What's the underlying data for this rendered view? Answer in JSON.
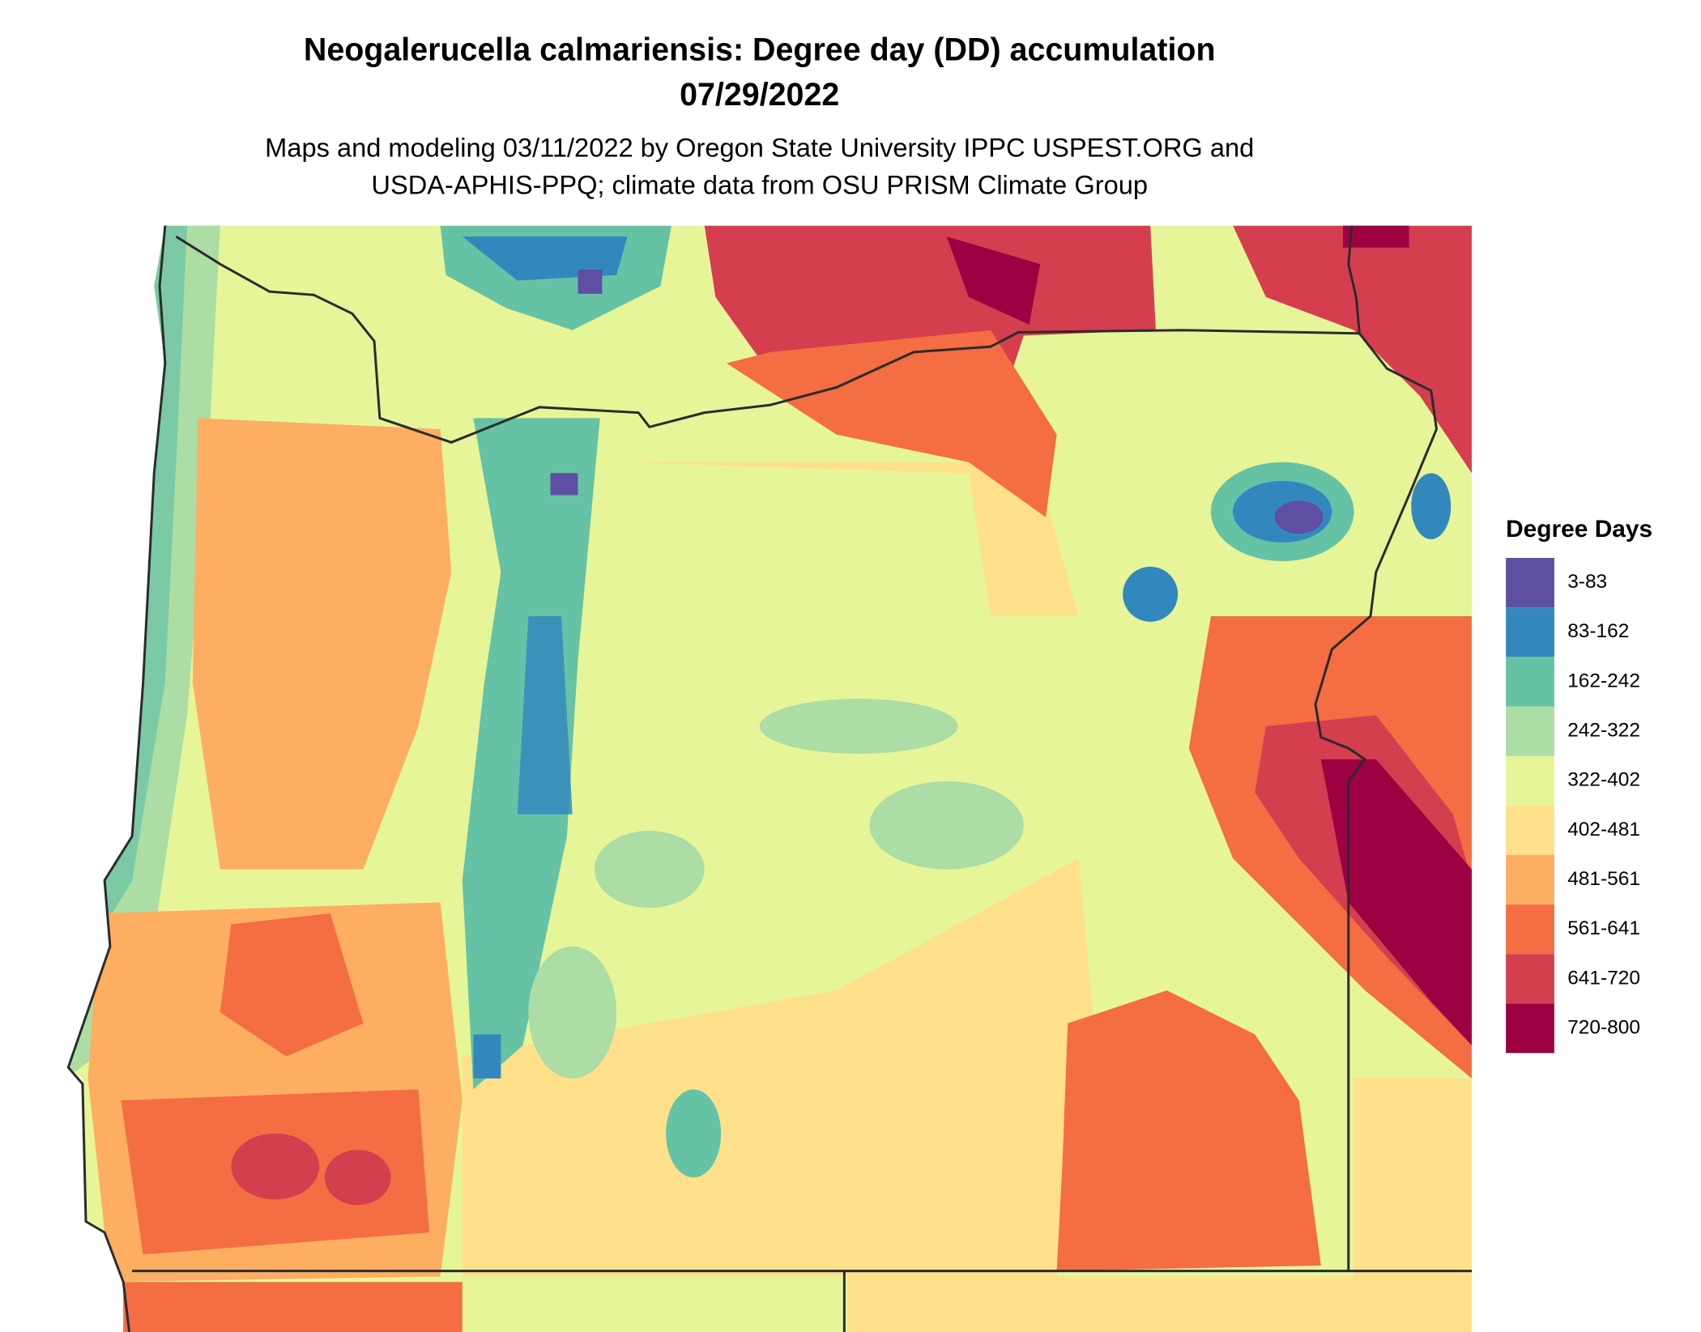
{
  "header": {
    "title": "Neogalerucella calmariensis: Degree day (DD) accumulation",
    "date": "07/29/2022",
    "subtitle_lines": [
      "Maps and modeling 03/11/2022 by Oregon State University IPPC USPEST.ORG and",
      "USDA-APHIS-PPQ; climate data from OSU PRISM Climate Group"
    ]
  },
  "legend": {
    "title": "Degree Days",
    "items": [
      {
        "label": "3-83",
        "color": "#5e4fa2"
      },
      {
        "label": "83-162",
        "color": "#3288bd"
      },
      {
        "label": "162-242",
        "color": "#66c2a5"
      },
      {
        "label": "242-322",
        "color": "#abdda4"
      },
      {
        "label": "322-402",
        "color": "#e6f598"
      },
      {
        "label": "402-481",
        "color": "#fee08b"
      },
      {
        "label": "481-561",
        "color": "#fdae61"
      },
      {
        "label": "561-641",
        "color": "#f46d43"
      },
      {
        "label": "641-720",
        "color": "#d53e4f"
      },
      {
        "label": "720-800",
        "color": "#9e0142"
      }
    ]
  }
}
